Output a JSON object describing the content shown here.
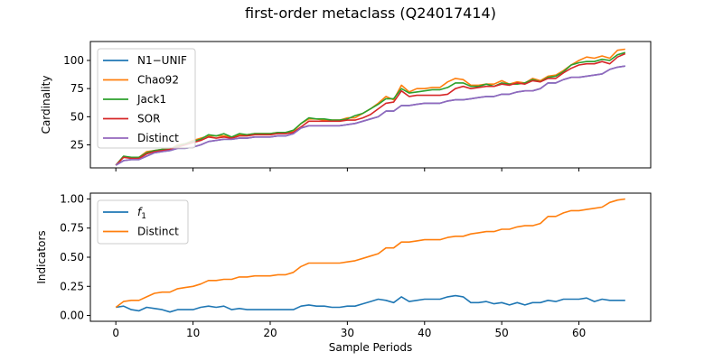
{
  "figure": {
    "title": "first-order metaclass (Q24017414)"
  },
  "chart_data": [
    {
      "type": "line",
      "title": "",
      "xlabel": "",
      "ylabel": "Cardinality",
      "xlim": [
        -3.3,
        69.3
      ],
      "ylim": [
        4.6,
        116.8
      ],
      "xticks": [
        0,
        10,
        20,
        30,
        40,
        50,
        60
      ],
      "xtick_labels_shown": false,
      "yticks": [
        25,
        50,
        75,
        100
      ],
      "ytick_labels": [
        "25",
        "50",
        "75",
        "100"
      ],
      "grid": false,
      "legend": "upper-left",
      "x": [
        0,
        1,
        2,
        3,
        4,
        5,
        6,
        7,
        8,
        9,
        10,
        11,
        12,
        13,
        14,
        15,
        16,
        17,
        18,
        19,
        20,
        21,
        22,
        23,
        24,
        25,
        26,
        27,
        28,
        29,
        30,
        31,
        32,
        33,
        34,
        35,
        36,
        37,
        38,
        39,
        40,
        41,
        42,
        43,
        44,
        45,
        46,
        47,
        48,
        49,
        50,
        51,
        52,
        53,
        54,
        55,
        56,
        57,
        58,
        59,
        60,
        61,
        62,
        63,
        64,
        65,
        66
      ],
      "series": [
        {
          "name": "N1−UNIF",
          "color": "#1f77b4",
          "values": [
            7,
            11,
            12,
            12,
            15,
            18,
            19,
            20,
            22,
            22,
            23,
            25,
            28,
            29,
            30,
            30,
            31,
            31,
            32,
            32,
            32,
            33,
            33,
            35,
            40,
            42,
            42,
            42,
            42,
            42,
            43,
            44,
            46,
            48,
            50,
            55,
            55,
            60,
            60,
            61,
            62,
            62,
            62,
            64,
            65,
            65,
            66,
            67,
            68,
            68,
            70,
            70,
            72,
            73,
            73,
            75,
            80,
            80,
            83,
            85,
            85,
            86,
            87,
            88,
            92,
            94,
            95
          ]
        },
        {
          "name": "Chao92",
          "color": "#ff7f0e",
          "values": [
            7,
            14,
            14,
            14,
            19,
            20,
            21,
            21,
            25,
            26,
            29,
            31,
            33,
            33,
            33,
            32,
            34,
            34,
            35,
            35,
            35,
            36,
            36,
            37,
            44,
            48,
            48,
            47,
            47,
            47,
            49,
            49,
            53,
            57,
            62,
            68,
            65,
            78,
            72,
            75,
            75,
            76,
            76,
            81,
            84,
            83,
            78,
            78,
            79,
            79,
            82,
            79,
            81,
            80,
            84,
            82,
            86,
            87,
            91,
            96,
            100,
            103,
            102,
            104,
            102,
            109,
            110
          ]
        },
        {
          "name": "Jack1",
          "color": "#2ca02c",
          "values": [
            7,
            15,
            14,
            14,
            18,
            20,
            21,
            21,
            24,
            26,
            28,
            30,
            34,
            33,
            35,
            32,
            35,
            34,
            35,
            35,
            35,
            36,
            36,
            38,
            44,
            49,
            48,
            48,
            47,
            47,
            48,
            51,
            53,
            57,
            61,
            66,
            66,
            75,
            71,
            72,
            73,
            74,
            74,
            76,
            80,
            80,
            77,
            77,
            79,
            77,
            80,
            79,
            79,
            80,
            83,
            81,
            85,
            86,
            90,
            96,
            98,
            99,
            99,
            101,
            100,
            105,
            107
          ]
        },
        {
          "name": "SOR",
          "color": "#d62728",
          "values": [
            7,
            14,
            13,
            13,
            17,
            19,
            20,
            21,
            23,
            25,
            27,
            29,
            32,
            31,
            32,
            31,
            33,
            33,
            34,
            34,
            34,
            35,
            35,
            36,
            41,
            46,
            46,
            46,
            46,
            46,
            47,
            47,
            49,
            52,
            57,
            62,
            63,
            73,
            68,
            69,
            69,
            69,
            69,
            70,
            75,
            77,
            75,
            76,
            77,
            77,
            79,
            78,
            80,
            79,
            82,
            81,
            84,
            84,
            89,
            93,
            96,
            97,
            97,
            99,
            97,
            103,
            106
          ]
        },
        {
          "name": "Distinct",
          "color": "#9467bd",
          "values": [
            7,
            11,
            12,
            12,
            15,
            18,
            19,
            20,
            22,
            22,
            23,
            25,
            28,
            29,
            30,
            30,
            31,
            31,
            32,
            32,
            32,
            33,
            33,
            35,
            40,
            42,
            42,
            42,
            42,
            42,
            43,
            44,
            46,
            48,
            50,
            55,
            55,
            60,
            60,
            61,
            62,
            62,
            62,
            64,
            65,
            65,
            66,
            67,
            68,
            68,
            70,
            70,
            72,
            73,
            73,
            75,
            80,
            80,
            83,
            85,
            85,
            86,
            87,
            88,
            92,
            94,
            95
          ]
        }
      ]
    },
    {
      "type": "line",
      "title": "",
      "xlabel": "Sample Periods",
      "ylabel": "Indicators",
      "xlim": [
        -3.3,
        69.3
      ],
      "ylim": [
        -0.05,
        1.05
      ],
      "xticks": [
        0,
        10,
        20,
        30,
        40,
        50,
        60
      ],
      "xtick_labels": [
        "0",
        "10",
        "20",
        "30",
        "40",
        "50",
        "60"
      ],
      "yticks": [
        0.0,
        0.25,
        0.5,
        0.75,
        1.0
      ],
      "ytick_labels": [
        "0.00",
        "0.25",
        "0.50",
        "0.75",
        "1.00"
      ],
      "grid": false,
      "legend": "upper-left",
      "x": [
        0,
        1,
        2,
        3,
        4,
        5,
        6,
        7,
        8,
        9,
        10,
        11,
        12,
        13,
        14,
        15,
        16,
        17,
        18,
        19,
        20,
        21,
        22,
        23,
        24,
        25,
        26,
        27,
        28,
        29,
        30,
        31,
        32,
        33,
        34,
        35,
        36,
        37,
        38,
        39,
        40,
        41,
        42,
        43,
        44,
        45,
        46,
        47,
        48,
        49,
        50,
        51,
        52,
        53,
        54,
        55,
        56,
        57,
        58,
        59,
        60,
        61,
        62,
        63,
        64,
        65,
        66
      ],
      "series": [
        {
          "name": "f1",
          "color": "#1f77b4",
          "values": [
            0.07,
            0.08,
            0.05,
            0.04,
            0.07,
            0.06,
            0.05,
            0.03,
            0.05,
            0.05,
            0.05,
            0.07,
            0.08,
            0.07,
            0.08,
            0.05,
            0.06,
            0.05,
            0.05,
            0.05,
            0.05,
            0.05,
            0.05,
            0.05,
            0.08,
            0.09,
            0.08,
            0.08,
            0.07,
            0.07,
            0.08,
            0.08,
            0.1,
            0.12,
            0.14,
            0.13,
            0.11,
            0.16,
            0.12,
            0.13,
            0.14,
            0.14,
            0.14,
            0.16,
            0.17,
            0.16,
            0.11,
            0.11,
            0.12,
            0.1,
            0.11,
            0.09,
            0.11,
            0.09,
            0.11,
            0.11,
            0.13,
            0.12,
            0.14,
            0.14,
            0.14,
            0.15,
            0.12,
            0.14,
            0.13,
            0.13,
            0.13
          ]
        },
        {
          "name": "Distinct",
          "color": "#ff7f0e",
          "values": [
            0.07,
            0.12,
            0.13,
            0.13,
            0.16,
            0.19,
            0.2,
            0.2,
            0.23,
            0.24,
            0.25,
            0.27,
            0.3,
            0.3,
            0.31,
            0.31,
            0.33,
            0.33,
            0.34,
            0.34,
            0.34,
            0.35,
            0.35,
            0.37,
            0.42,
            0.45,
            0.45,
            0.45,
            0.45,
            0.45,
            0.46,
            0.47,
            0.49,
            0.51,
            0.53,
            0.58,
            0.58,
            0.63,
            0.63,
            0.64,
            0.65,
            0.65,
            0.65,
            0.67,
            0.68,
            0.68,
            0.7,
            0.71,
            0.72,
            0.72,
            0.74,
            0.74,
            0.76,
            0.77,
            0.77,
            0.79,
            0.85,
            0.85,
            0.88,
            0.9,
            0.9,
            0.91,
            0.92,
            0.93,
            0.97,
            0.99,
            1.0
          ]
        }
      ]
    }
  ]
}
